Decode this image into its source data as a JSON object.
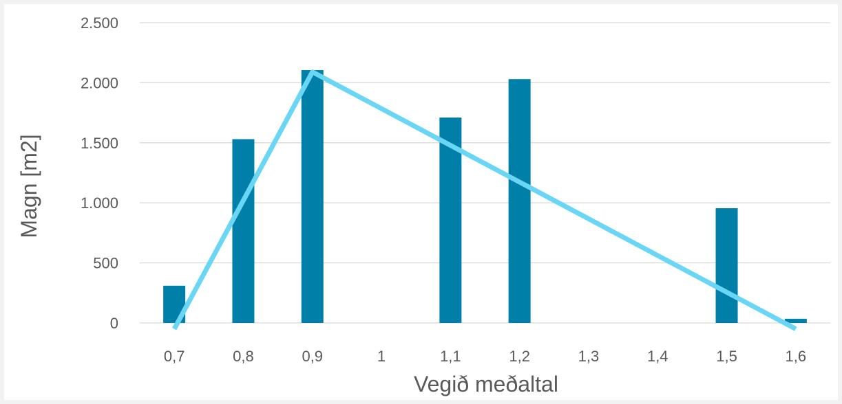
{
  "chart_data": {
    "type": "bar",
    "title": "",
    "xlabel": "Vegið meðaltal",
    "ylabel": "Magn [m2]",
    "categories": [
      "0,7",
      "0,8",
      "0,9",
      "1",
      "1,1",
      "1,2",
      "1,3",
      "1,4",
      "1,5",
      "1,6"
    ],
    "ylim": [
      0,
      2500
    ],
    "yticks": [
      0,
      500,
      1000,
      1500,
      2000,
      2500
    ],
    "ytick_labels": [
      "0",
      "500",
      "1.000",
      "1.500",
      "2.000",
      "2.500"
    ],
    "series": [
      {
        "type": "bar",
        "color": "#0080a8",
        "values": [
          310,
          1530,
          2105,
          0,
          1710,
          2030,
          0,
          0,
          955,
          35
        ]
      },
      {
        "type": "line",
        "color": "#6ad6f5",
        "points": [
          {
            "x": "0,7",
            "y": -50
          },
          {
            "x": "0,9",
            "y": 2090
          },
          {
            "x": "1,6",
            "y": -50
          }
        ]
      }
    ],
    "grid": true,
    "legend": "none",
    "gridline_color": "#d9d9d9"
  }
}
